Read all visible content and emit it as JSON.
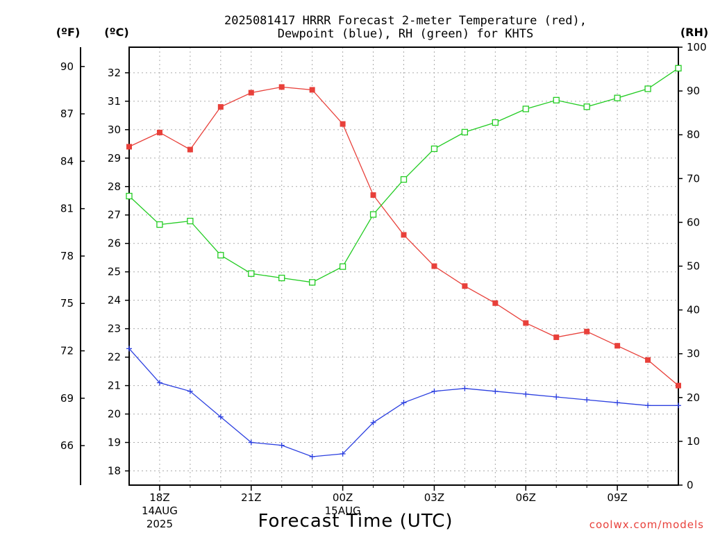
{
  "title_line1": "2025081417 HRRR Forecast 2-meter Temperature (red),",
  "title_line2": "Dewpoint (blue), RH (green) for KHTS",
  "unit_f": "(ºF)",
  "unit_c": "(ºC)",
  "unit_rh": "(RH)",
  "xlabel": "Forecast Time (UTC)",
  "credit": "coolwx.com/models",
  "colors": {
    "temperature": "#e8403a",
    "dewpoint": "#2b3fe0",
    "rh": "#22cc22",
    "grid": "#aaaaaa",
    "axis": "#000000"
  },
  "chart_data": {
    "type": "line",
    "grid": true,
    "x_hours_utc": [
      17,
      18,
      19,
      20,
      21,
      22,
      23,
      24,
      25,
      26,
      27,
      28,
      29,
      30,
      31,
      32,
      33,
      34,
      35
    ],
    "x_range": [
      17,
      35
    ],
    "x_ticks": [
      {
        "hour": 18,
        "lines": [
          "18Z",
          "14AUG",
          "2025"
        ]
      },
      {
        "hour": 21,
        "lines": [
          "21Z"
        ]
      },
      {
        "hour": 24,
        "lines": [
          "00Z",
          "15AUG"
        ]
      },
      {
        "hour": 27,
        "lines": [
          "03Z"
        ]
      },
      {
        "hour": 30,
        "lines": [
          "06Z"
        ]
      },
      {
        "hour": 33,
        "lines": [
          "09Z"
        ]
      }
    ],
    "y_celsius": {
      "range": [
        17.5,
        32.9
      ],
      "ticks": [
        "18",
        "19",
        "20",
        "21",
        "22",
        "23",
        "24",
        "25",
        "26",
        "27",
        "28",
        "29",
        "30",
        "31",
        "32"
      ]
    },
    "y_fahrenheit": {
      "ticks": [
        "66",
        "69",
        "72",
        "75",
        "78",
        "81",
        "84",
        "87",
        "90"
      ]
    },
    "y_rh": {
      "range": [
        0,
        100
      ],
      "ticks": [
        "0",
        "10",
        "20",
        "30",
        "40",
        "50",
        "60",
        "70",
        "80",
        "90",
        "100"
      ]
    },
    "series": [
      {
        "key": "temperature",
        "axis": "celsius",
        "marker": "filled-square",
        "values": [
          29.4,
          29.9,
          29.3,
          30.8,
          31.3,
          31.5,
          31.4,
          30.2,
          27.7,
          26.3,
          25.2,
          24.5,
          23.9,
          23.2,
          22.7,
          22.9,
          22.4,
          21.9,
          21.0
        ]
      },
      {
        "key": "dewpoint",
        "axis": "celsius",
        "marker": "plus",
        "values": [
          22.3,
          21.1,
          20.8,
          19.9,
          19.0,
          18.9,
          18.5,
          18.6,
          19.7,
          20.4,
          20.8,
          20.9,
          20.8,
          20.7,
          20.6,
          20.5,
          20.4,
          20.3,
          20.3
        ]
      },
      {
        "key": "rh",
        "axis": "rh",
        "marker": "open-square",
        "values": [
          66,
          59.5,
          60.3,
          52.5,
          48.3,
          47.3,
          46.3,
          49.9,
          61.8,
          69.8,
          76.8,
          80.6,
          82.8,
          85.9,
          87.9,
          86.4,
          88.4,
          90.5,
          95.2
        ]
      }
    ]
  }
}
